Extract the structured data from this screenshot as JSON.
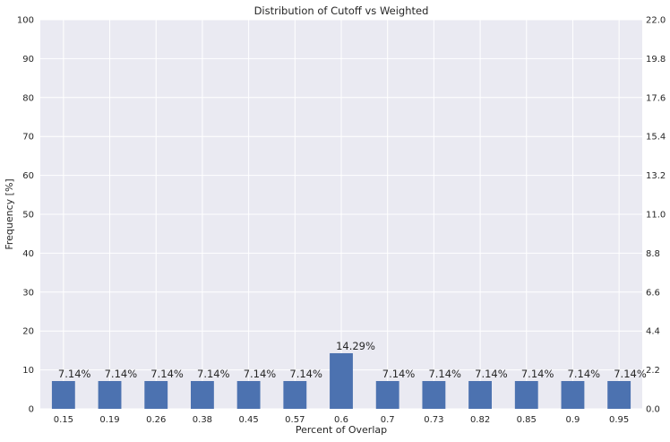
{
  "chart_data": {
    "type": "bar",
    "title": "Distribution of Cutoff vs Weighted",
    "xlabel": "Percent of Overlap",
    "ylabel": "Frequency [%]",
    "categories": [
      "0.15",
      "0.19",
      "0.26",
      "0.38",
      "0.45",
      "0.57",
      "0.6",
      "0.7",
      "0.73",
      "0.82",
      "0.85",
      "0.9",
      "0.95"
    ],
    "values": [
      7.14,
      7.14,
      7.14,
      7.14,
      7.14,
      7.14,
      14.29,
      7.14,
      7.14,
      7.14,
      7.14,
      7.14,
      7.14
    ],
    "data_labels": [
      "7.14%",
      "7.14%",
      "7.14%",
      "7.14%",
      "7.14%",
      "7.14%",
      "14.29%",
      "7.14%",
      "7.14%",
      "7.14%",
      "7.14%",
      "7.14%",
      "7.14%"
    ],
    "ylim": [
      0,
      100
    ],
    "yticks": [
      "0",
      "10",
      "20",
      "30",
      "40",
      "50",
      "60",
      "70",
      "80",
      "90",
      "100"
    ],
    "y2lim": [
      0,
      22
    ],
    "y2ticks": [
      "0.0",
      "2.2",
      "4.4",
      "6.6",
      "8.8",
      "11.0",
      "13.2",
      "15.4",
      "17.6",
      "19.8",
      "22.0"
    ],
    "grid": true,
    "colors": {
      "bar": "#4c72b0",
      "background": "#eaeaf2",
      "grid": "#ffffff"
    }
  }
}
